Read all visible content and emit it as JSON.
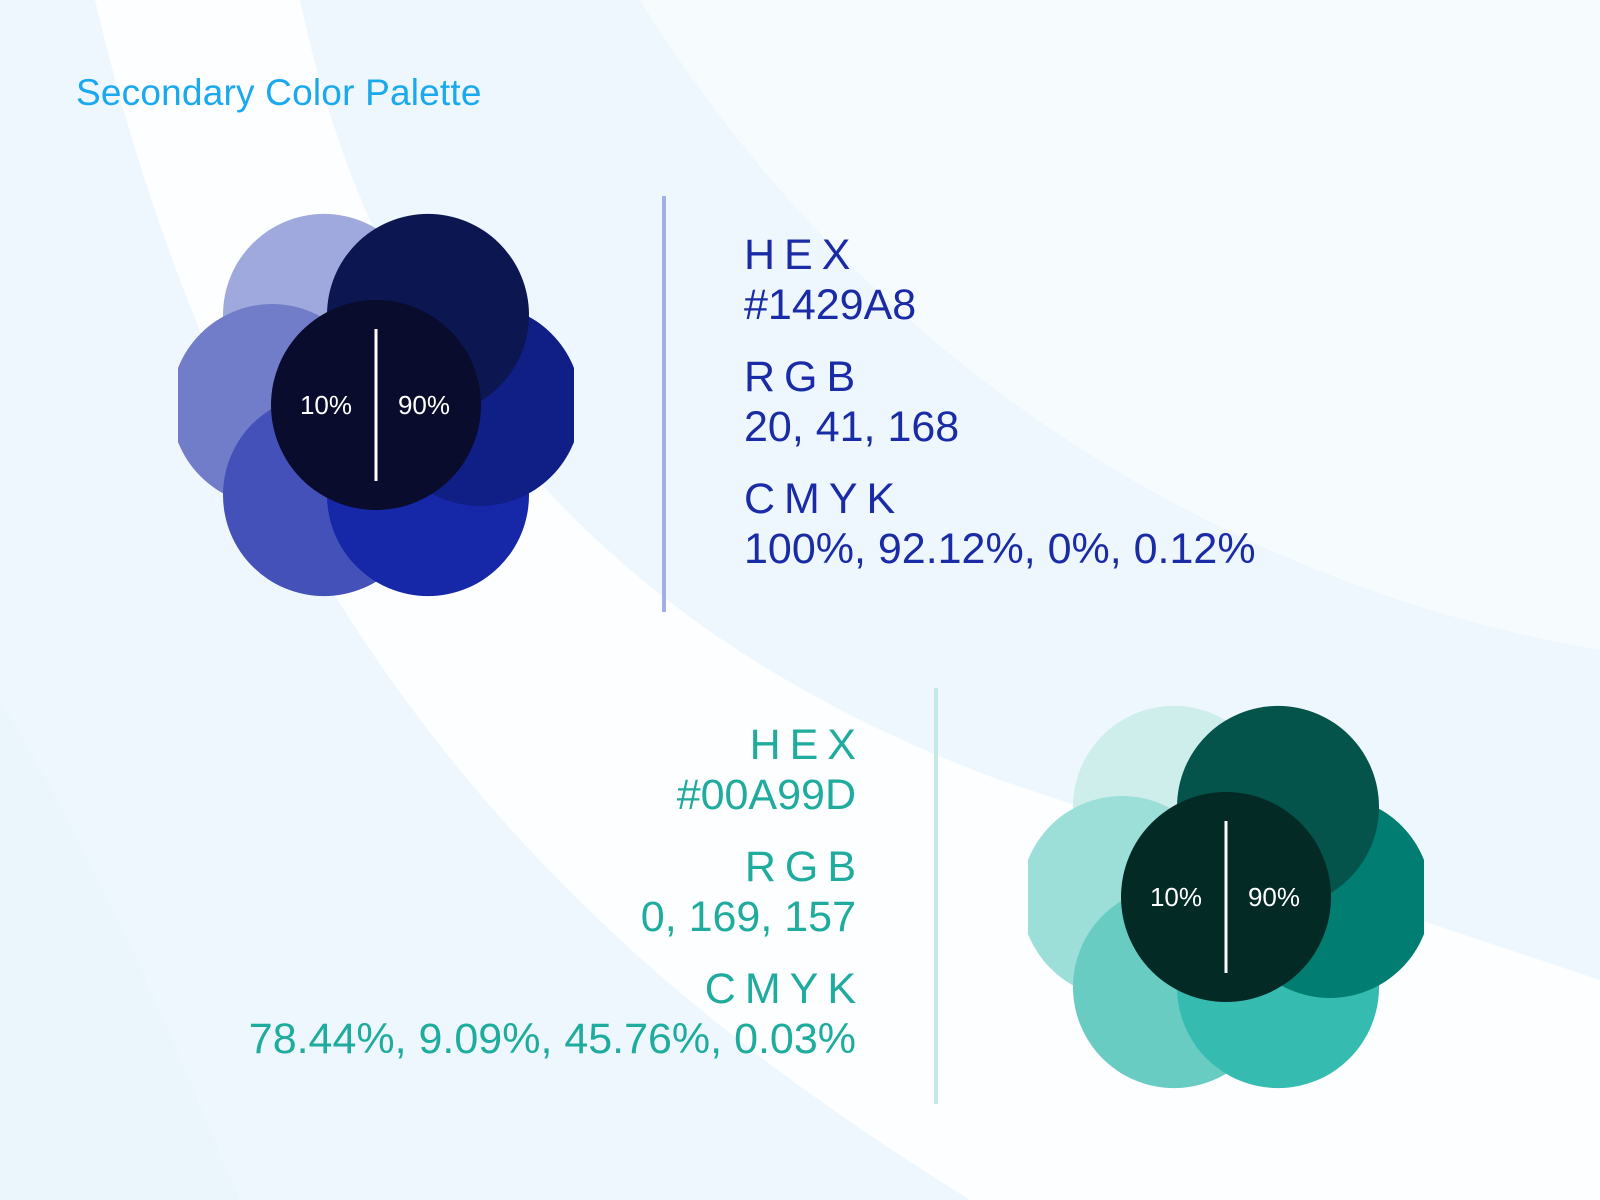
{
  "page": {
    "title": "Secondary Color Palette",
    "background": "#eef7fd"
  },
  "palettes": [
    {
      "id": "blue",
      "accent": "#1429A8",
      "ring_colors": [
        "#0c1650",
        "#0f1f86",
        "#1628a8",
        "#4451b8",
        "#717dc9",
        "#a0a9dd"
      ],
      "center_color": "#090c2c",
      "split": {
        "left": "10%",
        "right": "90%"
      },
      "hex_label": "HEX",
      "hex_value": "#1429A8",
      "rgb_label": "RGB",
      "rgb_value": "20, 41, 168",
      "cmyk_label": "CMYK",
      "cmyk_value": "100%, 92.12%, 0%, 0.12%"
    },
    {
      "id": "teal",
      "accent": "#00A99D",
      "ring_colors": [
        "#04544b",
        "#017d72",
        "#36bbb0",
        "#69ccc3",
        "#9bdfd8",
        "#cdeeea"
      ],
      "center_color": "#042a26",
      "split": {
        "left": "10%",
        "right": "90%"
      },
      "hex_label": "HEX",
      "hex_value": "#00A99D",
      "rgb_label": "RGB",
      "rgb_value": "0, 169, 157",
      "cmyk_label": "CMYK",
      "cmyk_value": "78.44%, 9.09%, 45.76%, 0.03%"
    }
  ]
}
